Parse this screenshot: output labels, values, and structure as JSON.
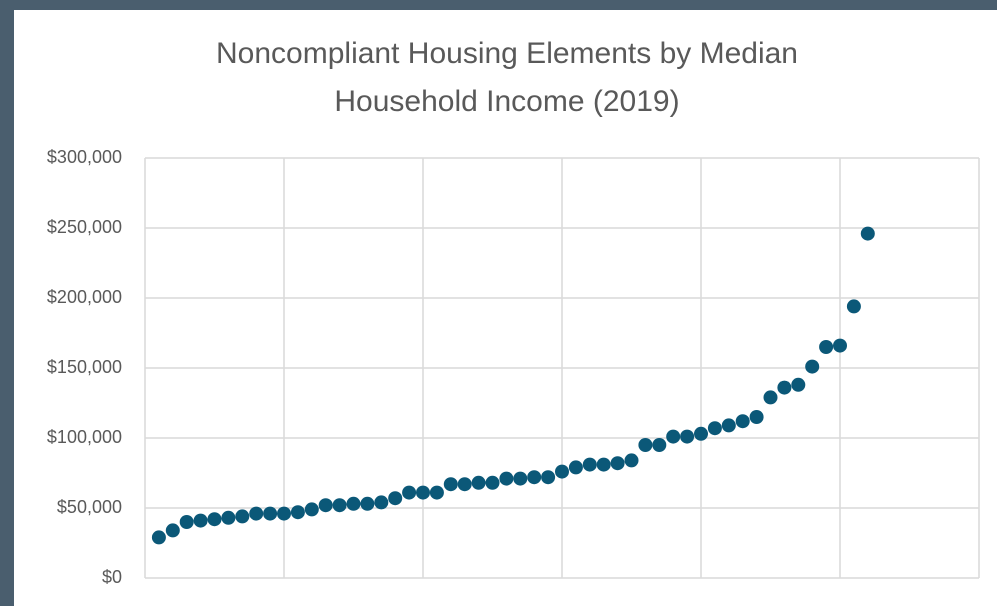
{
  "chart_data": {
    "type": "scatter",
    "title": "Noncompliant Housing Elements by Median Household Income (2019)",
    "x": [
      1,
      2,
      3,
      4,
      5,
      6,
      7,
      8,
      9,
      10,
      11,
      12,
      13,
      14,
      15,
      16,
      17,
      18,
      19,
      20,
      21,
      22,
      23,
      24,
      25,
      26,
      27,
      28,
      29,
      30,
      31,
      32,
      33,
      34,
      35,
      36,
      37,
      38,
      39,
      40,
      41,
      42,
      43,
      44,
      45,
      46,
      47,
      48,
      49,
      50,
      51,
      52
    ],
    "series": [
      {
        "color": "#0b5878",
        "values": [
          29000,
          34000,
          40000,
          41000,
          42000,
          43000,
          44000,
          46000,
          46000,
          46000,
          47000,
          49000,
          52000,
          52000,
          53000,
          53000,
          54000,
          57000,
          61000,
          61000,
          61000,
          67000,
          67000,
          68000,
          68000,
          71000,
          71000,
          72000,
          72000,
          76000,
          79000,
          81000,
          81000,
          82000,
          84000,
          95000,
          95000,
          101000,
          101000,
          103000,
          107000,
          109000,
          112000,
          115000,
          129000,
          136000,
          138000,
          151000,
          165000,
          166000,
          194000,
          246000
        ]
      }
    ],
    "xlim": [
      0,
      60
    ],
    "xticks": [
      0,
      10,
      20,
      30,
      40,
      50,
      60
    ],
    "ylim": [
      0,
      300000
    ],
    "yticks": [
      {
        "value": 0,
        "label": "$0"
      },
      {
        "value": 50000,
        "label": "$50,000"
      },
      {
        "value": 100000,
        "label": "$100,000"
      },
      {
        "value": 150000,
        "label": "$150,000"
      },
      {
        "value": 200000,
        "label": "$200,000"
      },
      {
        "value": 250000,
        "label": "$250,000"
      },
      {
        "value": 300000,
        "label": "$300,000"
      }
    ],
    "grid": true
  }
}
